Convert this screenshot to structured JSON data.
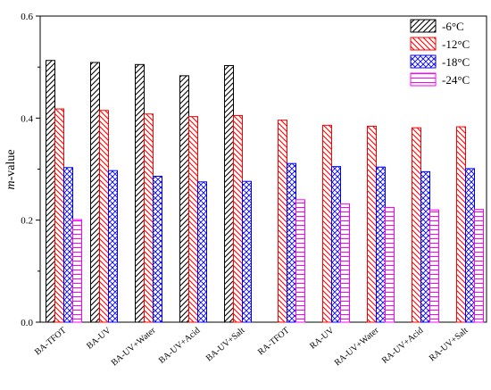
{
  "chart_data": {
    "type": "bar",
    "ylabel": "m-value",
    "ylabel_italic_part": "m",
    "ylabel_rest": "-value",
    "ylim": [
      0,
      0.6
    ],
    "yticks": [
      "0.0",
      "0.2",
      "0.4",
      "0.6"
    ],
    "ytick_values": [
      0,
      0.2,
      0.4,
      0.6
    ],
    "legend_position": "top-right",
    "categories": [
      "BA-TFOT",
      "BA-UV",
      "BA-UV+Water",
      "BA-UV+Acid",
      "BA-UV+Salt",
      "RA-TFOT",
      "RA-UV",
      "RA-UV+Water",
      "RA-UV+Acid",
      "RA-UV+Salt"
    ],
    "series": [
      {
        "name": "-6°C",
        "color": "#000000",
        "pattern": "diagonal-forward",
        "values": [
          0.513,
          0.509,
          0.505,
          0.483,
          0.503,
          null,
          null,
          null,
          null,
          null
        ]
      },
      {
        "name": "-12°C",
        "color": "#ff0000",
        "pattern": "diagonal-backward",
        "values": [
          0.418,
          0.415,
          0.408,
          0.403,
          0.405,
          0.396,
          0.386,
          0.384,
          0.381,
          0.383
        ]
      },
      {
        "name": "-18°C",
        "color": "#0000ff",
        "pattern": "crosshatch",
        "values": [
          0.303,
          0.297,
          0.286,
          0.275,
          0.276,
          0.311,
          0.305,
          0.304,
          0.295,
          0.301
        ]
      },
      {
        "name": "-24°C",
        "color": "#ff00ff",
        "pattern": "horizontal",
        "values": [
          0.201,
          null,
          null,
          null,
          null,
          0.24,
          0.232,
          0.225,
          0.22,
          0.221
        ]
      }
    ]
  }
}
